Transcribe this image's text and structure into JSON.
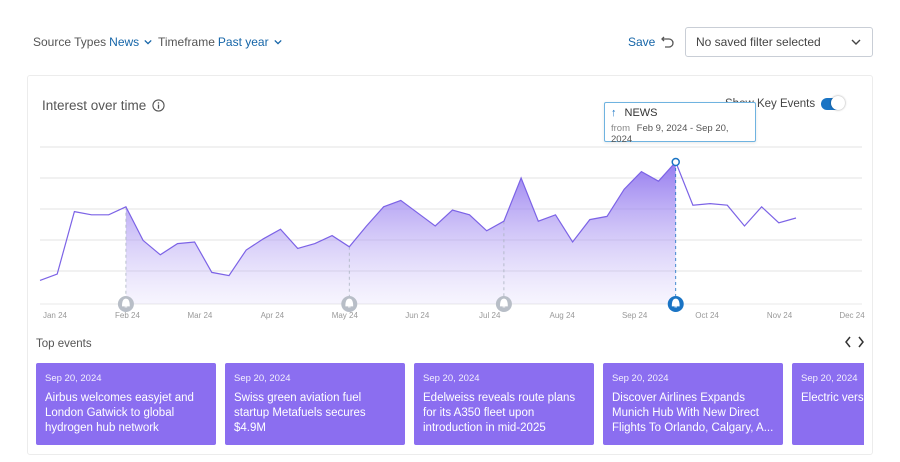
{
  "filters": {
    "source_label": "Source Types",
    "source_value": "News",
    "timeframe_label": "Timeframe",
    "timeframe_value": "Past year"
  },
  "toolbar": {
    "save_label": "Save",
    "saved_filter_value": "No saved filter selected"
  },
  "chart": {
    "title": "Interest over time",
    "key_events_label": "Show Key Events",
    "key_events_on": true,
    "tooltip": {
      "series": "NEWS",
      "from_label": "from",
      "range": "Feb 9, 2024 - Sep 20, 2024"
    }
  },
  "chart_data": {
    "type": "area",
    "title": "Interest over time",
    "series_name": "NEWS",
    "x_labels": [
      "Jan 24",
      "Feb 24",
      "Mar 24",
      "Apr 24",
      "May 24",
      "Jun 24",
      "Jul 24",
      "Aug 24",
      "Sep 24",
      "Oct 24",
      "Nov 24",
      "Dec 24"
    ],
    "values": [
      6,
      10,
      49,
      47,
      47,
      52,
      31,
      22,
      29,
      30,
      11,
      9,
      25,
      32,
      38,
      26,
      29,
      34,
      27,
      40,
      52,
      56,
      48,
      40,
      50,
      47,
      37,
      43,
      70,
      43,
      47,
      30,
      44,
      46,
      63,
      74,
      68,
      80,
      53,
      54,
      53,
      40,
      52,
      42,
      45
    ],
    "highlight_range": [
      5,
      37
    ],
    "selected_index": 37,
    "event_indices": [
      5,
      18,
      27,
      37
    ],
    "ylim": [
      0,
      100
    ],
    "grid": true
  },
  "events_section": {
    "title": "Top events",
    "prev_icon": "chevron-left-icon",
    "next_icon": "chevron-right-icon",
    "items": [
      {
        "date": "Sep 20, 2024",
        "headline": "Airbus welcomes easyjet and London Gatwick to global hydrogen hub network"
      },
      {
        "date": "Sep 20, 2024",
        "headline": "Swiss green aviation fuel startup Metafuels secures $4.9M"
      },
      {
        "date": "Sep 20, 2024",
        "headline": "Edelweiss reveals route plans for its A350 fleet upon introduction in mid-2025"
      },
      {
        "date": "Sep 20, 2024",
        "headline": "Discover Airlines Expands Munich Hub With New Direct Flights To Orlando, Calgary, A..."
      },
      {
        "date": "Sep 20, 2024",
        "headline": "Electric versus vehicles"
      }
    ]
  },
  "colors": {
    "accent": "#1565a8",
    "line": "#7c63e6",
    "event_card": "#8b6ef0",
    "marker": "#1a74c4"
  }
}
